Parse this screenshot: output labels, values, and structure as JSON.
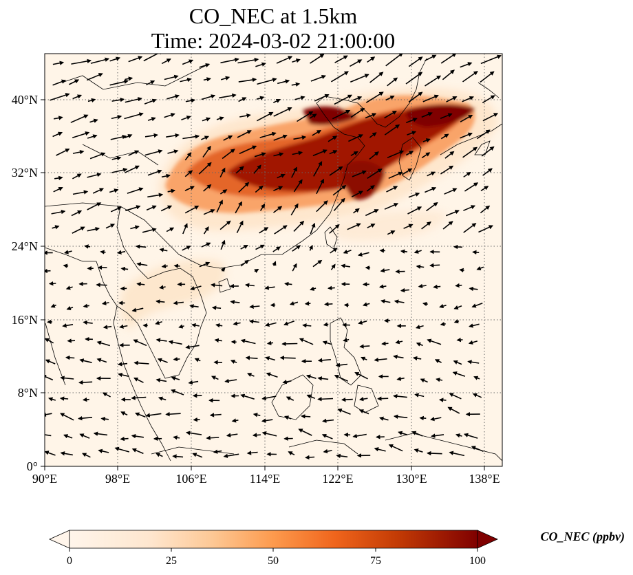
{
  "title_line1": "CO_NEC at 1.5km",
  "title_line2": "Time: 2024-03-02 21:00:00",
  "map": {
    "lon_ticks": [
      "90°E",
      "98°E",
      "106°E",
      "114°E",
      "122°E",
      "130°E",
      "138°E"
    ],
    "lat_ticks": [
      "0°",
      "8°N",
      "16°N",
      "24°N",
      "32°N",
      "40°N"
    ],
    "lon_range": [
      90,
      140
    ],
    "lat_range": [
      0,
      45
    ],
    "grid": "dotted",
    "wind_vectors": true
  },
  "colorbar": {
    "label": "CO_NEC (ppbv)",
    "ticks": [
      "0",
      "25",
      "50",
      "75",
      "100"
    ],
    "range": [
      0,
      100
    ],
    "extend": "both",
    "colormap": [
      "#fff5eb",
      "#fdd9b4",
      "#fda762",
      "#f3701b",
      "#c44103",
      "#7f0000"
    ]
  }
}
